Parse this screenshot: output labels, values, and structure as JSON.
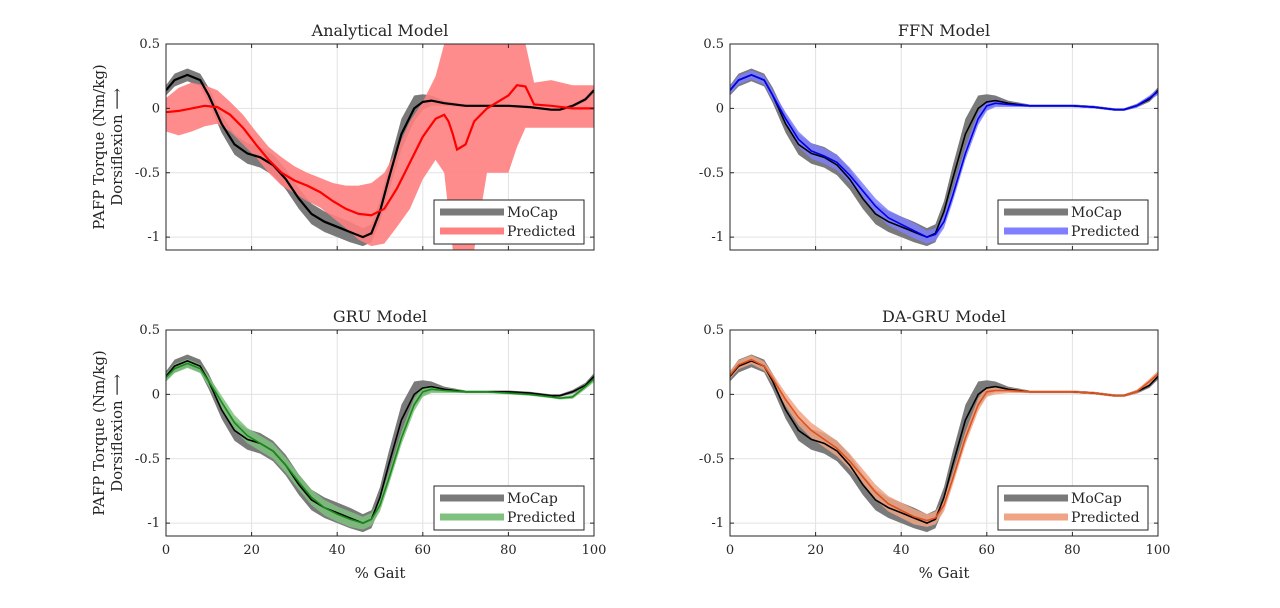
{
  "colors": {
    "mocap_band": "#7a7a7a",
    "mocap_mean": "#000000",
    "analytical_band": "#ff8080",
    "analytical_mean": "#ff0000",
    "ffn_band": "#7f7fff",
    "ffn_mean": "#0000ee",
    "gru_band": "#7fc27f",
    "gru_mean": "#1a8a1a",
    "dagru_band": "#efa485",
    "dagru_mean": "#e0521d"
  },
  "chart_data": [
    {
      "type": "line",
      "title": "Analytical Model",
      "ylabel_line1": "PAFP Torque (Nm/kg)",
      "ylabel_line2": "Dorsiflexion ⟶",
      "xlabel": "",
      "xlim": [
        0,
        100
      ],
      "ylim": [
        -1.1,
        0.5
      ],
      "xticks": [
        0,
        20,
        40,
        60,
        80,
        100
      ],
      "xtick_labels": [
        "",
        "",
        "",
        "",
        "",
        ""
      ],
      "yticks": [
        0.5,
        0,
        -0.5,
        -1
      ],
      "ytick_labels": [
        "0.5",
        "0",
        "-0.5",
        "-1"
      ],
      "grid": true,
      "legend_position": "bottom-right",
      "legend": [
        "MoCap",
        "Predicted"
      ],
      "predicted_color": "analytical",
      "predicted": {
        "x": [
          0,
          3,
          6,
          9,
          12,
          15,
          18,
          21,
          24,
          27,
          30,
          33,
          36,
          39,
          42,
          45,
          48,
          51,
          54,
          57,
          60,
          63,
          65,
          66,
          67,
          68,
          69,
          70,
          72,
          75,
          80,
          82,
          84,
          86,
          90,
          95,
          100
        ],
        "mean": [
          -0.03,
          -0.02,
          0.0,
          0.02,
          0.01,
          -0.05,
          -0.15,
          -0.28,
          -0.4,
          -0.5,
          -0.56,
          -0.6,
          -0.65,
          -0.72,
          -0.78,
          -0.82,
          -0.83,
          -0.78,
          -0.62,
          -0.42,
          -0.22,
          -0.08,
          -0.05,
          -0.1,
          -0.2,
          -0.32,
          -0.3,
          -0.28,
          -0.1,
          0.0,
          0.1,
          0.18,
          0.17,
          0.03,
          0.02,
          0.0,
          0.0
        ],
        "upper": [
          0.08,
          0.16,
          0.2,
          0.18,
          0.14,
          0.05,
          -0.05,
          -0.18,
          -0.3,
          -0.38,
          -0.45,
          -0.5,
          -0.54,
          -0.58,
          -0.6,
          -0.6,
          -0.58,
          -0.5,
          -0.32,
          -0.1,
          0.05,
          0.25,
          0.5,
          0.5,
          0.5,
          0.5,
          0.5,
          0.5,
          0.5,
          0.5,
          0.5,
          0.5,
          0.5,
          0.2,
          0.22,
          0.18,
          0.18
        ],
        "lower": [
          -0.18,
          -0.21,
          -0.18,
          -0.14,
          -0.12,
          -0.18,
          -0.28,
          -0.38,
          -0.5,
          -0.6,
          -0.66,
          -0.72,
          -0.77,
          -0.85,
          -0.93,
          -1.02,
          -1.07,
          -1.05,
          -0.92,
          -0.78,
          -0.55,
          -0.4,
          -0.5,
          -0.8,
          -1.1,
          -1.1,
          -1.1,
          -1.1,
          -1.1,
          -0.5,
          -0.5,
          -0.3,
          -0.15,
          -0.15,
          -0.15,
          -0.15,
          -0.15
        ]
      }
    },
    {
      "type": "line",
      "title": "FFN Model",
      "ylabel_line1": "",
      "ylabel_line2": "",
      "xlabel": "",
      "xlim": [
        0,
        100
      ],
      "ylim": [
        -1.1,
        0.5
      ],
      "xticks": [
        0,
        20,
        40,
        60,
        80,
        100
      ],
      "xtick_labels": [
        "",
        "",
        "",
        "",
        "",
        ""
      ],
      "yticks": [
        0.5,
        0,
        -0.5,
        -1
      ],
      "ytick_labels": [
        "0.5",
        "0",
        "-0.5",
        "-1"
      ],
      "grid": true,
      "legend_position": "bottom-right",
      "legend": [
        "MoCap",
        "Predicted"
      ],
      "predicted_color": "ffn",
      "predicted": {
        "x": [
          0,
          2,
          5,
          8,
          10,
          13,
          16,
          19,
          22,
          25,
          28,
          31,
          34,
          37,
          40,
          43,
          46,
          48,
          50,
          52,
          55,
          58,
          60,
          62,
          65,
          70,
          75,
          80,
          85,
          90,
          92,
          95,
          98,
          100
        ],
        "mean": [
          0.14,
          0.22,
          0.26,
          0.22,
          0.1,
          -0.08,
          -0.24,
          -0.33,
          -0.37,
          -0.42,
          -0.52,
          -0.64,
          -0.76,
          -0.85,
          -0.9,
          -0.95,
          -1.0,
          -0.98,
          -0.88,
          -0.68,
          -0.35,
          -0.08,
          0.02,
          0.04,
          0.03,
          0.02,
          0.02,
          0.02,
          0.01,
          -0.01,
          -0.01,
          0.02,
          0.08,
          0.13
        ],
        "spread": [
          0.03,
          0.035,
          0.035,
          0.035,
          0.04,
          0.05,
          0.06,
          0.06,
          0.06,
          0.06,
          0.06,
          0.06,
          0.06,
          0.06,
          0.06,
          0.06,
          0.05,
          0.05,
          0.05,
          0.05,
          0.05,
          0.05,
          0.04,
          0.03,
          0.02,
          0.01,
          0.01,
          0.01,
          0.01,
          0.01,
          0.01,
          0.015,
          0.02,
          0.025
        ]
      }
    },
    {
      "type": "line",
      "title": "GRU Model",
      "ylabel_line1": "PAFP Torque (Nm/kg)",
      "ylabel_line2": "Dorsiflexion ⟶",
      "xlabel": "% Gait",
      "xlim": [
        0,
        100
      ],
      "ylim": [
        -1.1,
        0.5
      ],
      "xticks": [
        0,
        20,
        40,
        60,
        80,
        100
      ],
      "xtick_labels": [
        "0",
        "20",
        "40",
        "60",
        "80",
        "100"
      ],
      "yticks": [
        0.5,
        0,
        -0.5,
        -1
      ],
      "ytick_labels": [
        "0.5",
        "0",
        "-0.5",
        "-1"
      ],
      "grid": true,
      "legend_position": "bottom-right",
      "legend": [
        "MoCap",
        "Predicted"
      ],
      "predicted_color": "gru",
      "predicted": {
        "x": [
          0,
          2,
          5,
          8,
          10,
          13,
          16,
          19,
          22,
          25,
          28,
          31,
          34,
          37,
          40,
          43,
          46,
          48,
          50,
          52,
          55,
          58,
          60,
          62,
          65,
          70,
          75,
          80,
          85,
          90,
          92,
          95,
          98,
          100
        ],
        "mean": [
          0.13,
          0.2,
          0.24,
          0.2,
          0.1,
          -0.06,
          -0.22,
          -0.32,
          -0.38,
          -0.44,
          -0.55,
          -0.68,
          -0.8,
          -0.88,
          -0.93,
          -0.97,
          -1.0,
          -0.97,
          -0.86,
          -0.66,
          -0.34,
          -0.08,
          0.02,
          0.04,
          0.03,
          0.02,
          0.02,
          0.01,
          0.0,
          -0.02,
          -0.03,
          -0.02,
          0.06,
          0.12
        ],
        "spread": [
          0.03,
          0.035,
          0.035,
          0.035,
          0.04,
          0.05,
          0.06,
          0.06,
          0.06,
          0.06,
          0.06,
          0.06,
          0.06,
          0.06,
          0.06,
          0.06,
          0.05,
          0.05,
          0.05,
          0.05,
          0.05,
          0.05,
          0.04,
          0.03,
          0.02,
          0.01,
          0.01,
          0.01,
          0.01,
          0.01,
          0.01,
          0.015,
          0.02,
          0.025
        ]
      }
    },
    {
      "type": "line",
      "title": "DA-GRU Model",
      "ylabel_line1": "",
      "ylabel_line2": "",
      "xlabel": "% Gait",
      "xlim": [
        0,
        100
      ],
      "ylim": [
        -1.1,
        0.5
      ],
      "xticks": [
        0,
        20,
        40,
        60,
        80,
        100
      ],
      "xtick_labels": [
        "0",
        "20",
        "40",
        "60",
        "80",
        "100"
      ],
      "yticks": [
        0.5,
        0,
        -0.5,
        -1
      ],
      "ytick_labels": [
        "0.5",
        "0",
        "-0.5",
        "-1"
      ],
      "grid": true,
      "legend_position": "bottom-right",
      "legend": [
        "MoCap",
        "Predicted"
      ],
      "predicted_color": "dagru",
      "predicted": {
        "x": [
          0,
          2,
          5,
          8,
          10,
          13,
          16,
          19,
          22,
          25,
          28,
          31,
          34,
          37,
          40,
          43,
          46,
          48,
          50,
          52,
          55,
          58,
          60,
          62,
          65,
          70,
          75,
          80,
          85,
          90,
          92,
          95,
          98,
          100
        ],
        "mean": [
          0.15,
          0.23,
          0.27,
          0.22,
          0.12,
          -0.04,
          -0.18,
          -0.28,
          -0.35,
          -0.42,
          -0.52,
          -0.64,
          -0.76,
          -0.85,
          -0.9,
          -0.95,
          -0.98,
          -0.96,
          -0.86,
          -0.66,
          -0.34,
          -0.08,
          0.02,
          0.03,
          0.03,
          0.02,
          0.02,
          0.02,
          0.01,
          -0.01,
          -0.01,
          0.02,
          0.1,
          0.16
        ],
        "spread": [
          0.03,
          0.035,
          0.035,
          0.035,
          0.04,
          0.05,
          0.06,
          0.06,
          0.06,
          0.06,
          0.06,
          0.06,
          0.06,
          0.06,
          0.06,
          0.06,
          0.05,
          0.05,
          0.05,
          0.05,
          0.05,
          0.05,
          0.04,
          0.03,
          0.02,
          0.01,
          0.01,
          0.01,
          0.01,
          0.01,
          0.01,
          0.015,
          0.02,
          0.025
        ]
      }
    }
  ],
  "mocap": {
    "x": [
      0,
      2,
      5,
      8,
      10,
      13,
      16,
      19,
      22,
      25,
      28,
      31,
      34,
      37,
      40,
      43,
      46,
      48,
      50,
      52,
      55,
      58,
      60,
      62,
      65,
      70,
      75,
      80,
      85,
      90,
      92,
      95,
      98,
      100
    ],
    "mean": [
      0.14,
      0.22,
      0.26,
      0.22,
      0.1,
      -0.12,
      -0.28,
      -0.35,
      -0.38,
      -0.44,
      -0.55,
      -0.7,
      -0.82,
      -0.88,
      -0.92,
      -0.96,
      -1.0,
      -0.97,
      -0.8,
      -0.55,
      -0.2,
      0.0,
      0.05,
      0.06,
      0.04,
      0.02,
      0.02,
      0.02,
      0.01,
      -0.01,
      -0.01,
      0.02,
      0.07,
      0.14
    ],
    "spread": [
      0.04,
      0.05,
      0.05,
      0.05,
      0.06,
      0.07,
      0.08,
      0.08,
      0.08,
      0.08,
      0.08,
      0.08,
      0.08,
      0.08,
      0.08,
      0.08,
      0.07,
      0.07,
      0.08,
      0.1,
      0.12,
      0.1,
      0.06,
      0.04,
      0.02,
      0.01,
      0.01,
      0.01,
      0.01,
      0.01,
      0.01,
      0.015,
      0.02,
      0.025
    ]
  }
}
